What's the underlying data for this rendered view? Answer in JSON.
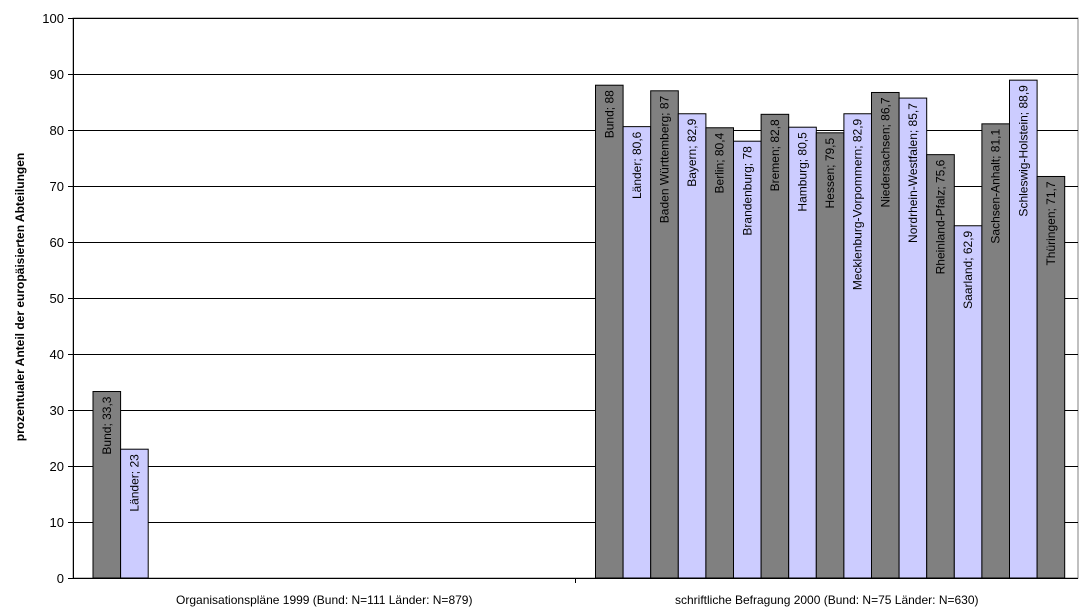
{
  "chart_data": {
    "type": "bar",
    "ylabel": "prozentualer Anteil der europäisierten Abteilungen",
    "ylim": [
      0,
      100
    ],
    "yticks": [
      0,
      10,
      20,
      30,
      40,
      50,
      60,
      70,
      80,
      90,
      100
    ],
    "grid": true,
    "groups": [
      {
        "label": "Organisationspläne 1999 (Bund: N=111 Länder: N=879)",
        "bars": [
          {
            "name": "Bund",
            "value": 33.3,
            "label": "Bund; 33,3",
            "color": "#808080"
          },
          {
            "name": "Länder",
            "value": 23,
            "label": "Länder; 23",
            "color": "#ccccff"
          }
        ]
      },
      {
        "label": "schriftliche Befragung 2000 (Bund: N=75 Länder: N=630)",
        "bars": [
          {
            "name": "Bund",
            "value": 88,
            "label": "Bund; 88",
            "color": "#808080"
          },
          {
            "name": "Länder",
            "value": 80.6,
            "label": "Länder; 80,6",
            "color": "#ccccff"
          },
          {
            "name": "Baden Württemberg",
            "value": 87,
            "label": "Baden Württemberg; 87",
            "color": "#808080"
          },
          {
            "name": "Bayern",
            "value": 82.9,
            "label": "Bayern; 82,9",
            "color": "#ccccff"
          },
          {
            "name": "Berlin",
            "value": 80.4,
            "label": "Berlin; 80,4",
            "color": "#808080"
          },
          {
            "name": "Brandenburg",
            "value": 78,
            "label": "Brandenburg; 78",
            "color": "#ccccff"
          },
          {
            "name": "Bremen",
            "value": 82.8,
            "label": "Bremen; 82,8",
            "color": "#808080"
          },
          {
            "name": "Hamburg",
            "value": 80.5,
            "label": "Hamburg; 80,5",
            "color": "#ccccff"
          },
          {
            "name": "Hessen",
            "value": 79.5,
            "label": "Hessen; 79,5",
            "color": "#808080"
          },
          {
            "name": "Mecklenburg-Vorpommern",
            "value": 82.9,
            "label": "Mecklenburg-Vorpommern; 82,9",
            "color": "#ccccff"
          },
          {
            "name": "Niedersachsen",
            "value": 86.7,
            "label": "Niedersachsen; 86,7",
            "color": "#808080"
          },
          {
            "name": "Nordrhein-Westfalen",
            "value": 85.7,
            "label": "Nordrhein-Westfalen; 85,7",
            "color": "#ccccff"
          },
          {
            "name": "Rheinland-Pfalz",
            "value": 75.6,
            "label": "Rheinland-Pfalz; 75,6",
            "color": "#808080"
          },
          {
            "name": "Saarland",
            "value": 62.9,
            "label": "Saarland; 62,9",
            "color": "#ccccff"
          },
          {
            "name": "Sachsen-Anhalt",
            "value": 81.1,
            "label": "Sachsen-Anhalt; 81,1",
            "color": "#808080"
          },
          {
            "name": "Schleswig-Holstein",
            "value": 88.9,
            "label": "Schleswig-Holstein; 88,9",
            "color": "#ccccff"
          },
          {
            "name": "Thüringen",
            "value": 71.7,
            "label": "Thüringen; 71,7",
            "color": "#808080"
          }
        ]
      }
    ]
  }
}
